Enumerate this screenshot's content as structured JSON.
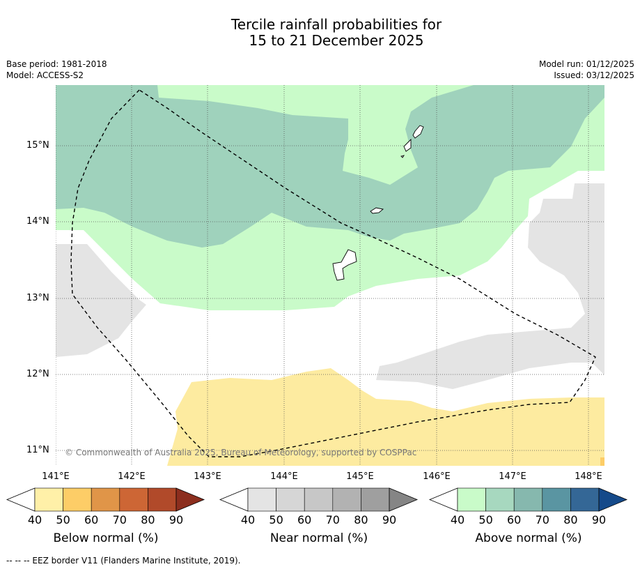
{
  "title": {
    "line1": "Tercile rainfall probabilities for",
    "line2": "15 to 21 December 2025"
  },
  "meta": {
    "base_period": "Base period: 1981-2018",
    "model": "Model: ACCESS-S2",
    "model_run": "Model run: 01/12/2025",
    "issued": "Issued: 03/12/2025"
  },
  "axes": {
    "lat_labels": [
      "15°N",
      "14°N",
      "13°N",
      "12°N",
      "11°N"
    ],
    "lon_labels": [
      "141°E",
      "142°E",
      "143°E",
      "144°E",
      "145°E",
      "146°E",
      "147°E",
      "148°E"
    ]
  },
  "copyright": "© Commonwealth of Australia 2025, Bureau of Meteorology, supported by COSPPac",
  "colorbars": [
    {
      "label": "Below normal (%)",
      "ticks": [
        "40",
        "50",
        "60",
        "70",
        "80",
        "90"
      ],
      "colors": [
        "#fff0a8",
        "#fdcd67",
        "#e09548",
        "#cd6635",
        "#b14a2a",
        "#8c2e1e"
      ]
    },
    {
      "label": "Near normal (%)",
      "ticks": [
        "40",
        "50",
        "60",
        "70",
        "80",
        "90"
      ],
      "colors": [
        "#e4e4e4",
        "#d6d6d6",
        "#c7c7c7",
        "#b2b2b2",
        "#9f9f9f",
        "#858585"
      ]
    },
    {
      "label": "Above normal (%)",
      "ticks": [
        "40",
        "50",
        "60",
        "70",
        "80",
        "90"
      ],
      "colors": [
        "#c9fbc9",
        "#a7d8bf",
        "#86b8ae",
        "#5a95a2",
        "#346796",
        "#154a8a"
      ]
    }
  ],
  "footer": "--  --  -- EEZ border V11 (Flanders Marine Institute, 2019)."
}
